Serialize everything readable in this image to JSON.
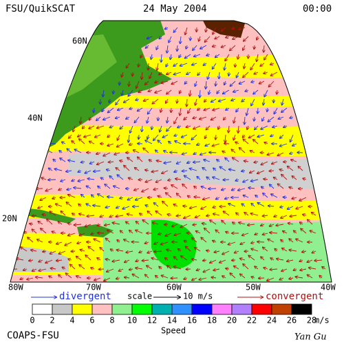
{
  "header": {
    "title": "FSU/QuikSCAT",
    "date": "24 May 2004",
    "time": "00:00"
  },
  "map": {
    "latitudes": [
      "60N",
      "40N",
      "20N"
    ],
    "longitudes": [
      "80W",
      "70W",
      "60W",
      "50W",
      "40W"
    ]
  },
  "legend": {
    "divergent": "divergent",
    "scale": "scale",
    "scale_value": "10 m/s",
    "convergent": "convergent",
    "divergent_color": "#2030e0",
    "convergent_color": "#b01010"
  },
  "colorbar": {
    "labels": [
      0,
      2,
      4,
      6,
      8,
      10,
      12,
      14,
      16,
      18,
      20,
      22,
      24,
      26,
      28
    ],
    "unit": "m/s",
    "title": "Speed",
    "colors": [
      "#ffffff",
      "#c8c8c8",
      "#ffff00",
      "#ffc0c0",
      "#90f090",
      "#00ff00",
      "#00b0b0",
      "#3090ff",
      "#0000ff",
      "#ff80ff",
      "#b080ff",
      "#ff0000",
      "#c04000",
      "#000000"
    ]
  },
  "footer": {
    "source": "COAPS-FSU",
    "author": "Yan Gu"
  }
}
